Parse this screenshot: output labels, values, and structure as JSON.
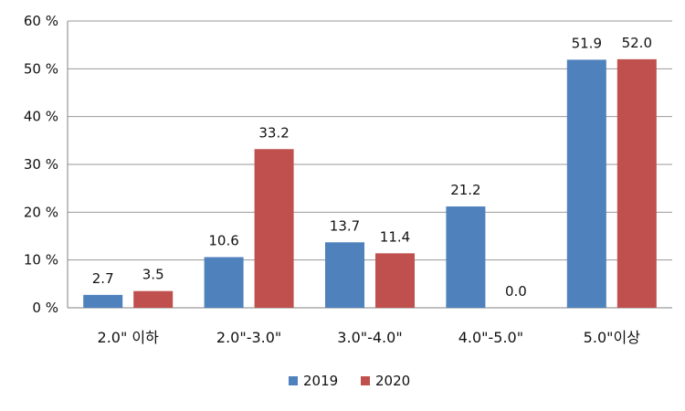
{
  "chart_data": {
    "type": "bar",
    "categories": [
      "2.0\" 이하",
      "2.0\"-3.0\"",
      "3.0\"-4.0\"",
      "4.0\"-5.0\"",
      "5.0\"이상"
    ],
    "series": [
      {
        "name": "2019",
        "values": [
          2.7,
          10.6,
          13.7,
          21.2,
          51.9
        ],
        "labels": [
          "2.7",
          "10.6",
          "13.7",
          "21.2",
          "51.9"
        ],
        "color": "#4f81bd"
      },
      {
        "name": "2020",
        "values": [
          3.5,
          33.2,
          11.4,
          0.0,
          52.0
        ],
        "labels": [
          "3.5",
          "33.2",
          "11.4",
          "0.0",
          "52.0"
        ],
        "color": "#c0504d"
      }
    ],
    "y_ticks": [
      {
        "value": 0,
        "label": "0 %"
      },
      {
        "value": 10,
        "label": "10 %"
      },
      {
        "value": 20,
        "label": "20 %"
      },
      {
        "value": 30,
        "label": "30 %"
      },
      {
        "value": 40,
        "label": "40 %"
      },
      {
        "value": 50,
        "label": "50 %"
      },
      {
        "value": 60,
        "label": "60 %"
      }
    ],
    "ylim": [
      0,
      60
    ],
    "grid": true,
    "legend": "bottom-center"
  }
}
